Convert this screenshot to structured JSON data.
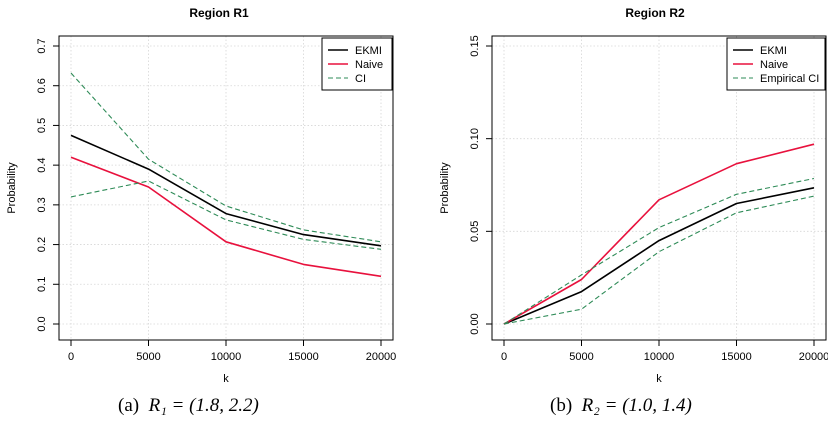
{
  "chart_data": [
    {
      "type": "line",
      "title": "Region R1",
      "xlabel": "k",
      "ylabel": "Probability",
      "x": [
        0,
        5000,
        10000,
        15000,
        20000
      ],
      "xticks": [
        0,
        5000,
        10000,
        15000,
        20000
      ],
      "xtick_labels": [
        "0",
        "5000",
        "10000",
        "15000",
        "20000"
      ],
      "xlim": [
        0,
        20000
      ],
      "yticks": [
        0.0,
        0.1,
        0.2,
        0.3,
        0.4,
        0.5,
        0.6,
        0.7
      ],
      "ytick_labels": [
        "0.0",
        "0.1",
        "0.2",
        "0.3",
        "0.4",
        "0.5",
        "0.6",
        "0.7"
      ],
      "ylim": [
        0,
        0.7
      ],
      "grid": true,
      "legend_position": "top-right",
      "series": [
        {
          "name": "EKMI",
          "color": "#000000",
          "dash": "solid",
          "values": [
            0.475,
            0.39,
            0.278,
            0.225,
            0.197
          ]
        },
        {
          "name": "Naive",
          "color": "#e8113d",
          "dash": "solid",
          "values": [
            0.42,
            0.345,
            0.207,
            0.15,
            0.12
          ]
        },
        {
          "name": "CI",
          "color": "#2e8b57",
          "dash": "dashed",
          "values": [
            0.632,
            0.415,
            0.297,
            0.237,
            0.207
          ],
          "in_legend": true
        },
        {
          "name": "CI",
          "color": "#2e8b57",
          "dash": "dashed",
          "values": [
            0.32,
            0.36,
            0.262,
            0.213,
            0.188
          ],
          "in_legend": false
        }
      ]
    },
    {
      "type": "line",
      "title": "Region R2",
      "xlabel": "k",
      "ylabel": "Probability",
      "x": [
        0,
        5000,
        10000,
        15000,
        20000
      ],
      "xticks": [
        0,
        5000,
        10000,
        15000,
        20000
      ],
      "xtick_labels": [
        "0",
        "5000",
        "10000",
        "15000",
        "20000"
      ],
      "xlim": [
        0,
        20000
      ],
      "yticks": [
        0.0,
        0.05,
        0.1,
        0.15
      ],
      "ytick_labels": [
        "0.00",
        "0.05",
        "0.10",
        "0.15"
      ],
      "ylim": [
        0,
        0.15
      ],
      "grid": true,
      "legend_position": "top-right",
      "series": [
        {
          "name": "EKMI",
          "color": "#000000",
          "dash": "solid",
          "values": [
            0.0,
            0.0175,
            0.045,
            0.065,
            0.0735
          ]
        },
        {
          "name": "Naive",
          "color": "#e8113d",
          "dash": "solid",
          "values": [
            0.0,
            0.024,
            0.067,
            0.0865,
            0.097
          ]
        },
        {
          "name": "Empirical CI",
          "color": "#2e8b57",
          "dash": "dashed",
          "values": [
            0.0,
            0.0265,
            0.052,
            0.07,
            0.0785
          ],
          "in_legend": true
        },
        {
          "name": "Empirical CI",
          "color": "#2e8b57",
          "dash": "dashed",
          "values": [
            0.0,
            0.008,
            0.039,
            0.06,
            0.069
          ],
          "in_legend": false
        }
      ]
    }
  ],
  "captions": [
    {
      "label": "(a)",
      "math": "R₁ = (1.8, 2.2)"
    },
    {
      "label": "(b)",
      "math": "R₂ = (1.0, 1.4)"
    }
  ]
}
